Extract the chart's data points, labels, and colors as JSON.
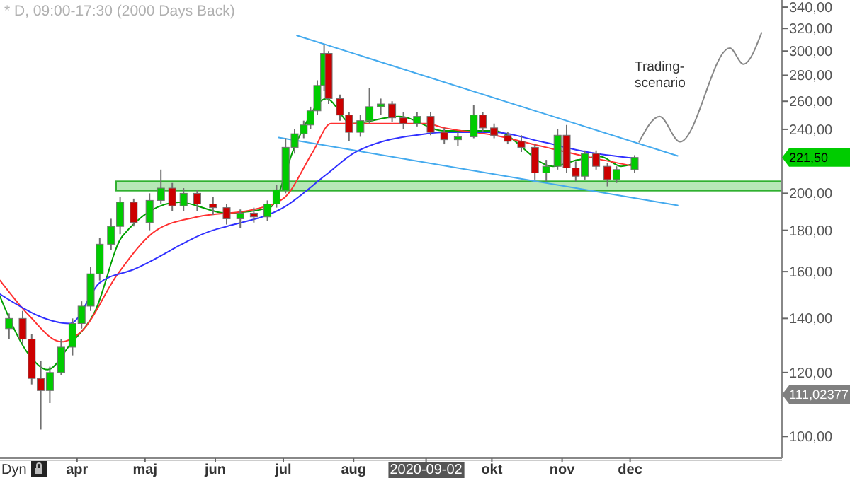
{
  "chart_data": {
    "type": "candlestick",
    "title": "* D, 09:00-17:30 (2000 Days Back)",
    "x": [
      "2020-03-02",
      "2020-03-08",
      "2020-03-12",
      "2020-03-16",
      "2020-03-20",
      "2020-03-25",
      "2020-03-30",
      "2020-04-03",
      "2020-04-07",
      "2020-04-11",
      "2020-04-16",
      "2020-04-20",
      "2020-04-26",
      "2020-05-03",
      "2020-05-08",
      "2020-05-13",
      "2020-05-18",
      "2020-05-24",
      "2020-05-31",
      "2020-06-06",
      "2020-06-12",
      "2020-06-18",
      "2020-06-24",
      "2020-06-28",
      "2020-07-02",
      "2020-07-06",
      "2020-07-10",
      "2020-07-13",
      "2020-07-16",
      "2020-07-19",
      "2020-07-21",
      "2020-07-26",
      "2020-07-30",
      "2020-08-04",
      "2020-08-08",
      "2020-08-13",
      "2020-08-18",
      "2020-08-23",
      "2020-08-29",
      "2020-09-04",
      "2020-09-10",
      "2020-09-16",
      "2020-09-23",
      "2020-09-27",
      "2020-10-02",
      "2020-10-08",
      "2020-10-14",
      "2020-10-20",
      "2020-10-25",
      "2020-10-30",
      "2020-11-03",
      "2020-11-07",
      "2020-11-11",
      "2020-11-16",
      "2020-11-21",
      "2020-11-25",
      "2020-12-03"
    ],
    "ohlc": [
      [
        136,
        142,
        132,
        140
      ],
      [
        140,
        143,
        130,
        132
      ],
      [
        132,
        134,
        116,
        118
      ],
      [
        118,
        124,
        102,
        114
      ],
      [
        114,
        122,
        110,
        120
      ],
      [
        120,
        132,
        119,
        129
      ],
      [
        129,
        140,
        126,
        138
      ],
      [
        138,
        147,
        136,
        145
      ],
      [
        145,
        162,
        143,
        159
      ],
      [
        159,
        176,
        156,
        173
      ],
      [
        173,
        186,
        170,
        182
      ],
      [
        182,
        198,
        178,
        195
      ],
      [
        195,
        197,
        182,
        184
      ],
      [
        184,
        200,
        180,
        196
      ],
      [
        196,
        214,
        194,
        203
      ],
      [
        203,
        206,
        190,
        193
      ],
      [
        193,
        203,
        190,
        200
      ],
      [
        200,
        202,
        190,
        194
      ],
      [
        194,
        198,
        188,
        192
      ],
      [
        192,
        194,
        183,
        186
      ],
      [
        186,
        191,
        181,
        189
      ],
      [
        189,
        192,
        184,
        187
      ],
      [
        187,
        196,
        185,
        194
      ],
      [
        194,
        205,
        192,
        202
      ],
      [
        202,
        234,
        200,
        228
      ],
      [
        228,
        240,
        224,
        237
      ],
      [
        237,
        246,
        234,
        243
      ],
      [
        243,
        256,
        240,
        253
      ],
      [
        253,
        276,
        250,
        272
      ],
      [
        272,
        305,
        268,
        298
      ],
      [
        298,
        300,
        258,
        262
      ],
      [
        262,
        265,
        246,
        250
      ],
      [
        250,
        252,
        232,
        238
      ],
      [
        238,
        250,
        235,
        246
      ],
      [
        246,
        270,
        244,
        256
      ],
      [
        256,
        262,
        250,
        258
      ],
      [
        258,
        260,
        245,
        248
      ],
      [
        248,
        252,
        240,
        244
      ],
      [
        244,
        252,
        242,
        249
      ],
      [
        249,
        252,
        236,
        238
      ],
      [
        238,
        241,
        230,
        233
      ],
      [
        233,
        238,
        229,
        235
      ],
      [
        235,
        257,
        234,
        250
      ],
      [
        250,
        252,
        238,
        241
      ],
      [
        241,
        244,
        234,
        236
      ],
      [
        236,
        238,
        230,
        232
      ],
      [
        232,
        236,
        225,
        228
      ],
      [
        228,
        230,
        208,
        212
      ],
      [
        212,
        220,
        207,
        216
      ],
      [
        216,
        240,
        214,
        236
      ],
      [
        236,
        243,
        212,
        215
      ],
      [
        215,
        219,
        207,
        210
      ],
      [
        210,
        226,
        208,
        224
      ],
      [
        224,
        226,
        214,
        216
      ],
      [
        216,
        218,
        204,
        208
      ],
      [
        208,
        216,
        206,
        214
      ],
      [
        214,
        223,
        212,
        221.5
      ]
    ],
    "series": [
      {
        "type": "line",
        "color": "#00a000",
        "x": [
          "2020-02-27",
          "2020-03-11",
          "2020-03-19",
          "2020-03-29",
          "2020-04-09",
          "2020-04-21",
          "2020-05-16",
          "2020-06-06",
          "2020-06-25",
          "2020-07-07",
          "2020-07-20",
          "2020-07-31",
          "2020-08-21",
          "2020-09-10",
          "2020-10-02",
          "2020-10-28",
          "2020-11-08",
          "2020-11-18",
          "2020-11-27",
          "2020-12-03"
        ],
        "values": [
          149,
          126,
          121,
          130,
          143,
          177,
          195,
          189,
          192,
          232,
          262,
          244,
          249,
          239,
          239,
          216,
          220,
          222,
          216,
          218
        ]
      },
      {
        "type": "line",
        "color": "#ff3030",
        "x": [
          "2020-02-27",
          "2020-03-11",
          "2020-03-25",
          "2020-04-03",
          "2020-04-19",
          "2020-05-06",
          "2020-05-24",
          "2020-06-18",
          "2020-07-01",
          "2020-07-14",
          "2020-07-22",
          "2020-08-08",
          "2020-09-02",
          "2020-09-10",
          "2020-10-02",
          "2020-10-22",
          "2020-11-12",
          "2020-12-03"
        ],
        "values": [
          156,
          141,
          131,
          135,
          159,
          180,
          187,
          191,
          197,
          225,
          244,
          244,
          244,
          241,
          236,
          229,
          222,
          216
        ]
      },
      {
        "type": "line",
        "color": "#3030ff",
        "x": [
          "2020-02-27",
          "2020-03-29",
          "2020-04-11",
          "2020-04-26",
          "2020-05-31",
          "2020-06-06",
          "2020-07-01",
          "2020-07-20",
          "2020-08-02",
          "2020-09-02",
          "2020-09-10",
          "2020-10-02",
          "2020-10-22",
          "2020-11-12",
          "2020-12-03"
        ],
        "values": [
          150,
          138,
          155,
          161,
          180,
          182,
          192,
          211,
          225,
          237,
          238,
          238,
          232,
          225,
          221
        ]
      },
      {
        "type": "line",
        "color": "#44aaee",
        "x": [
          "2020-07-07",
          "2020-12-22"
        ],
        "values": [
          313.6,
          222.5
        ]
      },
      {
        "type": "line",
        "color": "#44aaee",
        "x": [
          "2020-06-29",
          "2020-12-22"
        ],
        "values": [
          234.5,
          193.2
        ]
      },
      {
        "type": "line",
        "color": "#888888",
        "x": [
          "2020-12-05",
          "2020-12-14",
          "2020-12-23",
          "2021-01-14",
          "2021-01-20",
          "2021-01-28"
        ],
        "values": [
          231.6,
          249,
          231.6,
          302.5,
          289,
          316
        ]
      }
    ],
    "bands": [
      {
        "axis": "y",
        "from": 201.5,
        "to": 207,
        "color": "#99dd99"
      }
    ],
    "annotations": [
      "Trading-\nscenario",
      "Dyn",
      "221,50",
      "111,02377"
    ],
    "log": "y",
    "grid": false,
    "xlim": [
      "2020-02-27",
      "2021-02-06"
    ],
    "ylim": [
      94,
      347
    ],
    "xticks": [
      {
        "value": "2020-04-01",
        "label": "apr"
      },
      {
        "value": "2020-05-01",
        "label": "maj"
      },
      {
        "value": "2020-06-01",
        "label": "jun"
      },
      {
        "value": "2020-07-01",
        "label": "jul"
      },
      {
        "value": "2020-08-01",
        "label": "aug"
      },
      {
        "value": "2020-09-02",
        "label": "2020-09-02"
      },
      {
        "value": "2020-10-01",
        "label": "okt"
      },
      {
        "value": "2020-11-01",
        "label": "nov"
      },
      {
        "value": "2020-12-01",
        "label": "dec"
      }
    ],
    "yticks": [
      {
        "value": 100,
        "label": "100,00"
      },
      {
        "value": 120,
        "label": "120,00"
      },
      {
        "value": 140,
        "label": "140,00"
      },
      {
        "value": 160,
        "label": "160,00"
      },
      {
        "value": 180,
        "label": "180,00"
      },
      {
        "value": 200,
        "label": "200,00"
      },
      {
        "value": 240,
        "label": "240,00"
      },
      {
        "value": 260,
        "label": "260,00"
      },
      {
        "value": 280,
        "label": "280,00"
      },
      {
        "value": 300,
        "label": "300,00"
      },
      {
        "value": 320,
        "label": "320,00"
      },
      {
        "value": 340,
        "label": "340,00"
      }
    ]
  }
}
